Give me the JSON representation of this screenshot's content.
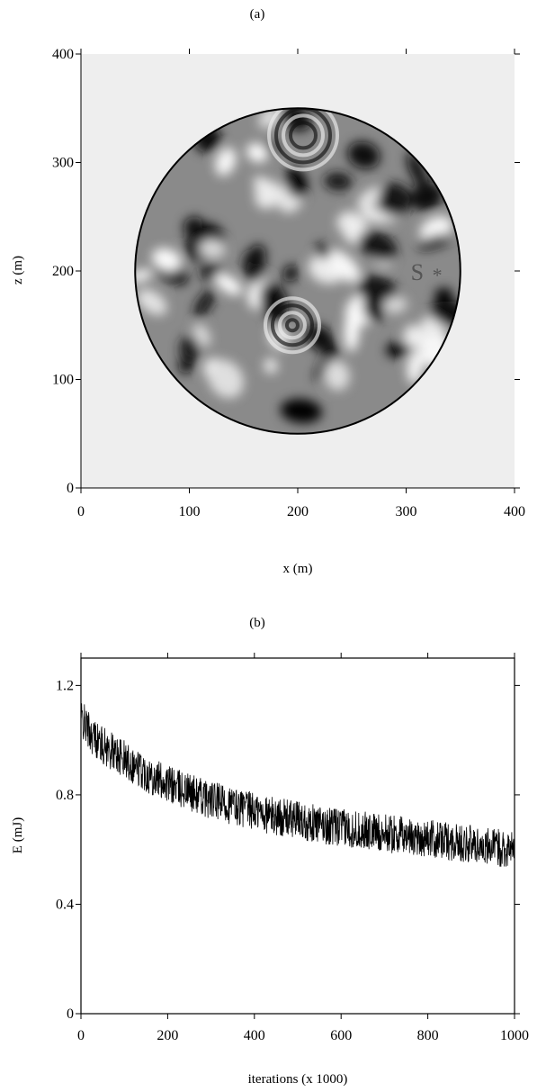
{
  "chart_data": [
    {
      "type": "heatmap",
      "panel_label": "(a)",
      "title": "",
      "xlabel": "x (m)",
      "ylabel": "z (m)",
      "xlim": [
        0,
        400
      ],
      "ylim": [
        0,
        400
      ],
      "xticks": [
        0,
        100,
        200,
        300,
        400
      ],
      "yticks": [
        0,
        100,
        200,
        300,
        400
      ],
      "colormap": "grayscale",
      "background_color": "#eeeeee",
      "circle": {
        "center": [
          200,
          200
        ],
        "radius": 150
      },
      "source": {
        "label": "S",
        "marker": "*",
        "x": 320,
        "y": 200
      }
    },
    {
      "type": "line",
      "panel_label": "(b)",
      "title": "",
      "xlabel": "iterations (x 1000)",
      "ylabel": "E (mJ)",
      "xlim": [
        0,
        1000
      ],
      "ylim": [
        0,
        1.3
      ],
      "xticks": [
        0,
        200,
        400,
        600,
        800,
        1000
      ],
      "yticks": [
        "0",
        "0.4",
        "0.8",
        "1.2"
      ],
      "ytick_values": [
        0,
        0.4,
        0.8,
        1.2
      ],
      "series": [
        {
          "x": [
            0,
            25,
            50,
            100,
            150,
            200,
            250,
            300,
            350,
            400,
            450,
            500,
            550,
            600,
            650,
            700,
            750,
            800,
            850,
            900,
            950,
            1000
          ],
          "values": [
            1.08,
            1.02,
            0.98,
            0.93,
            0.88,
            0.84,
            0.81,
            0.78,
            0.76,
            0.74,
            0.72,
            0.71,
            0.69,
            0.68,
            0.67,
            0.66,
            0.65,
            0.64,
            0.63,
            0.62,
            0.61,
            0.6
          ],
          "noise_amplitude": 0.07
        }
      ]
    }
  ]
}
